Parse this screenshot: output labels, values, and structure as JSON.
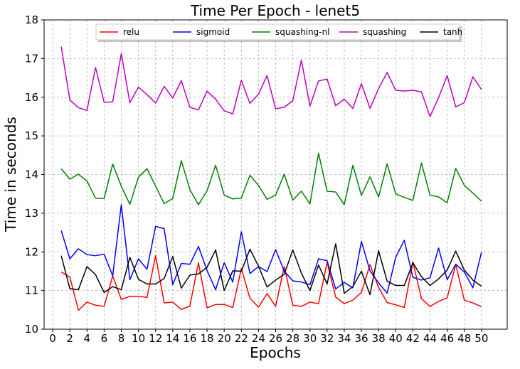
{
  "chart_data": {
    "type": "line",
    "title": "Time Per Epoch - lenet5",
    "xlabel": "Epochs",
    "ylabel": "Time in seconds",
    "xlim": [
      -1,
      53
    ],
    "ylim": [
      10,
      18
    ],
    "xticks": [
      0,
      2,
      4,
      6,
      8,
      10,
      12,
      14,
      16,
      18,
      20,
      22,
      24,
      26,
      28,
      30,
      32,
      34,
      36,
      38,
      40,
      42,
      44,
      46,
      48,
      50
    ],
    "yticks": [
      10,
      11,
      12,
      13,
      14,
      15,
      16,
      17,
      18
    ],
    "grid": true,
    "legend_position": "top-center",
    "x": [
      1,
      2,
      3,
      4,
      5,
      6,
      7,
      8,
      9,
      10,
      11,
      12,
      13,
      14,
      15,
      16,
      17,
      18,
      19,
      20,
      21,
      22,
      23,
      24,
      25,
      26,
      27,
      28,
      29,
      30,
      31,
      32,
      33,
      34,
      35,
      36,
      37,
      38,
      39,
      40,
      41,
      42,
      43,
      44,
      45,
      46,
      47,
      48,
      49,
      50
    ],
    "series": [
      {
        "name": "relu",
        "color": "#ff0000",
        "values": [
          11.48,
          11.35,
          10.49,
          10.7,
          10.62,
          10.59,
          11.38,
          10.77,
          10.85,
          10.85,
          10.82,
          11.9,
          10.68,
          10.7,
          10.51,
          10.6,
          11.72,
          10.55,
          10.64,
          10.64,
          10.56,
          11.57,
          10.8,
          10.57,
          10.92,
          10.59,
          11.62,
          10.62,
          10.59,
          10.7,
          10.66,
          11.73,
          10.83,
          10.66,
          10.75,
          10.95,
          11.67,
          11.08,
          10.69,
          10.63,
          10.56,
          11.74,
          10.79,
          10.59,
          10.72,
          10.81,
          11.67,
          10.75,
          10.68,
          10.58
        ]
      },
      {
        "name": "sigmoid",
        "color": "#0000ff",
        "values": [
          12.55,
          11.82,
          12.08,
          11.93,
          11.9,
          11.94,
          11.38,
          13.22,
          11.28,
          11.82,
          11.55,
          12.66,
          12.6,
          11.15,
          11.7,
          11.68,
          12.14,
          11.52,
          11.02,
          11.72,
          11.22,
          12.52,
          11.44,
          11.62,
          11.49,
          12.06,
          11.5,
          11.25,
          11.22,
          11.15,
          11.82,
          11.77,
          11.04,
          11.21,
          11.07,
          12.27,
          11.51,
          11.2,
          10.93,
          11.86,
          12.3,
          11.34,
          11.27,
          11.33,
          12.1,
          11.28,
          11.68,
          11.48,
          11.07,
          11.99
        ]
      },
      {
        "name": "squashing-nl",
        "color": "#008000",
        "values": [
          14.15,
          13.88,
          14.01,
          13.83,
          13.39,
          13.38,
          14.27,
          13.7,
          13.23,
          13.93,
          14.15,
          13.7,
          13.25,
          13.38,
          14.36,
          13.61,
          13.22,
          13.58,
          14.24,
          13.47,
          13.37,
          13.39,
          13.98,
          13.72,
          13.36,
          13.47,
          14.01,
          13.34,
          13.57,
          13.24,
          14.55,
          13.57,
          13.55,
          13.22,
          14.24,
          13.46,
          13.94,
          13.42,
          14.28,
          13.5,
          13.41,
          13.33,
          14.3,
          13.47,
          13.42,
          13.27,
          14.16,
          13.72,
          13.52,
          13.31
        ]
      },
      {
        "name": "squashing",
        "color": "#bf00bf",
        "values": [
          17.31,
          15.93,
          15.73,
          15.66,
          16.77,
          15.87,
          15.88,
          17.13,
          15.86,
          16.26,
          16.07,
          15.85,
          16.28,
          15.98,
          16.43,
          15.74,
          15.67,
          16.16,
          15.95,
          15.65,
          15.57,
          16.44,
          15.84,
          16.08,
          16.56,
          15.7,
          15.74,
          15.91,
          16.96,
          15.77,
          16.42,
          16.47,
          15.78,
          15.95,
          15.71,
          16.35,
          15.71,
          16.22,
          16.64,
          16.18,
          16.16,
          16.18,
          16.14,
          15.5,
          15.99,
          16.56,
          15.75,
          15.86,
          16.53,
          16.2
        ]
      },
      {
        "name": "tanh",
        "color": "#000000",
        "values": [
          11.9,
          11.05,
          11.02,
          11.62,
          11.41,
          10.95,
          11.1,
          11.02,
          11.86,
          11.29,
          11.17,
          11.17,
          11.31,
          11.88,
          11.06,
          11.4,
          11.43,
          11.6,
          12.05,
          11.0,
          11.51,
          11.5,
          12.07,
          11.63,
          11.09,
          11.27,
          11.42,
          12.05,
          11.45,
          11.0,
          11.66,
          11.17,
          12.21,
          10.93,
          11.1,
          11.5,
          10.89,
          12.03,
          11.24,
          11.13,
          11.13,
          11.72,
          11.36,
          11.13,
          11.3,
          11.53,
          12.02,
          11.53,
          11.27,
          11.11
        ]
      }
    ]
  }
}
